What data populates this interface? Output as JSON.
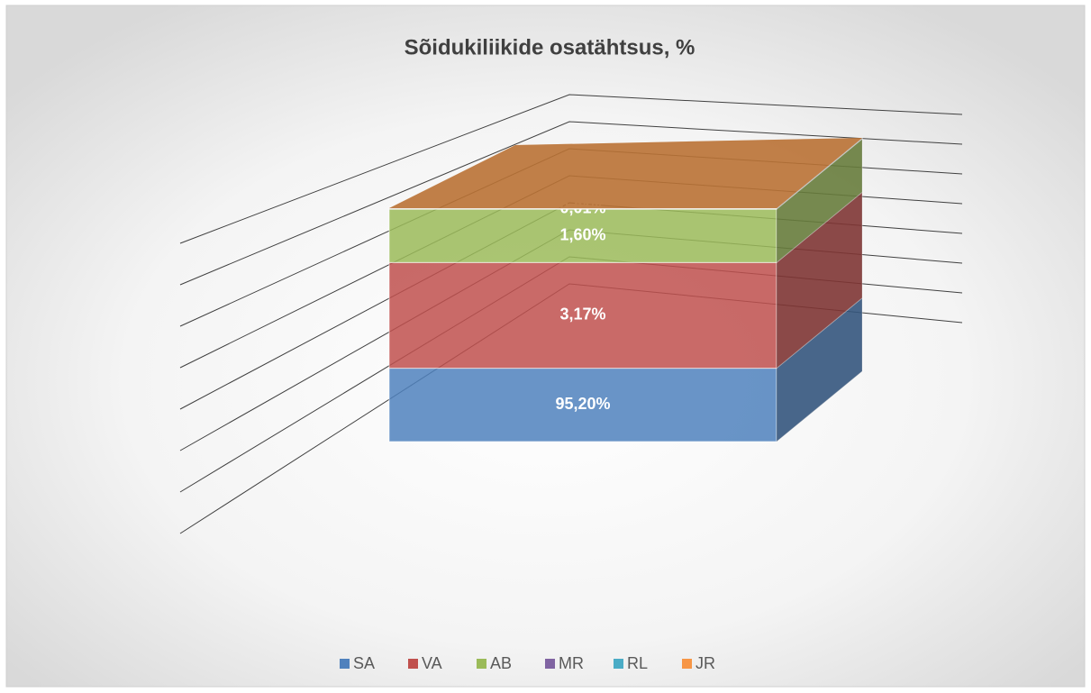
{
  "chart_data": {
    "type": "bar3d_stacked",
    "title": "Sõidukiliikide osatähtsus, %",
    "categories": [
      null
    ],
    "series": [
      {
        "name": "SA",
        "color": "#4f81bd",
        "values": [
          95.2
        ],
        "value_labels": [
          "95,20%"
        ]
      },
      {
        "name": "VA",
        "color": "#c0504d",
        "values": [
          3.17
        ],
        "value_labels": [
          "3,17%"
        ]
      },
      {
        "name": "AB",
        "color": "#9bbb59",
        "values": [
          1.6
        ],
        "value_labels": [
          "1,60%"
        ]
      },
      {
        "name": "MR",
        "color": "#8064a2",
        "values": [
          0.01
        ],
        "value_labels": [
          "0,01%"
        ]
      },
      {
        "name": "RL",
        "color": "#4bacc6",
        "values": [
          0.01
        ],
        "value_labels": [
          null
        ]
      },
      {
        "name": "JR",
        "color": "#f79646",
        "values": [
          0.01
        ],
        "value_labels": [
          null
        ]
      }
    ],
    "ylim": [
      93,
      100
    ],
    "yticks": [
      93,
      94,
      95,
      96,
      97,
      98,
      99,
      100
    ],
    "grid": true,
    "legend": "bottom"
  }
}
